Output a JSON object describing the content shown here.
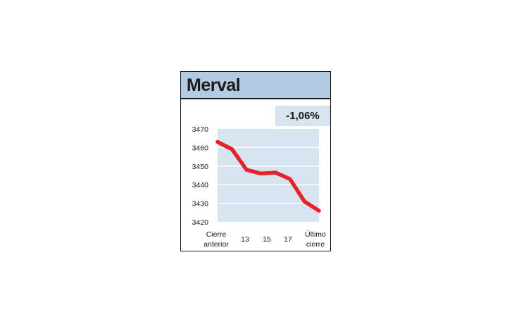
{
  "title": "Merval",
  "change": "-1,06%",
  "colors": {
    "header_bg": "#b2cbe0",
    "plot_bg": "#d7e3ee",
    "line": "#e3242b"
  },
  "chart_data": {
    "type": "line",
    "title": "Merval",
    "xlabel": "",
    "ylabel": "",
    "ylim": [
      3420,
      3470
    ],
    "yticks": [
      3470,
      3460,
      3450,
      3440,
      3430,
      3420
    ],
    "grid": true,
    "x_tick_labels": [
      {
        "pos": 0,
        "lines": [
          "Cierre",
          "anterior"
        ]
      },
      {
        "pos": 2,
        "lines": [
          "13"
        ]
      },
      {
        "pos": 4,
        "lines": [
          "15"
        ]
      },
      {
        "pos": 6,
        "lines": [
          "17"
        ]
      },
      {
        "pos": 8,
        "lines": [
          "Último",
          "cierre"
        ]
      }
    ],
    "series": [
      {
        "values": [
          3463,
          3459,
          3448,
          3446,
          3446.5,
          3443,
          3431,
          3426
        ]
      }
    ],
    "x": [
      0,
      1,
      2,
      3,
      4,
      5,
      6,
      7
    ]
  }
}
